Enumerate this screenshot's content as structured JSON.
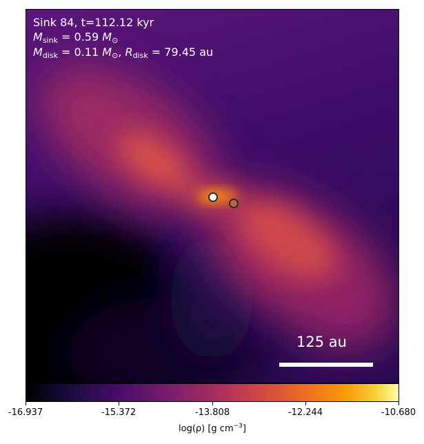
{
  "annotation": {
    "line1": "Sink 84, t=112.12 kyr",
    "m_sink_value": "0.59",
    "m_disk_value": "0.11",
    "r_disk_value": "79.45",
    "unit_au": "au"
  },
  "scale_bar": {
    "label": "125 au"
  },
  "colorbar": {
    "ticks": [
      "-16.937",
      "-15.372",
      "-13.808",
      "-12.244",
      "-10.680"
    ],
    "label_main": "log(ρ) [g cm",
    "label_exp": "−3",
    "label_close": "]",
    "colormap": "inferno"
  }
}
